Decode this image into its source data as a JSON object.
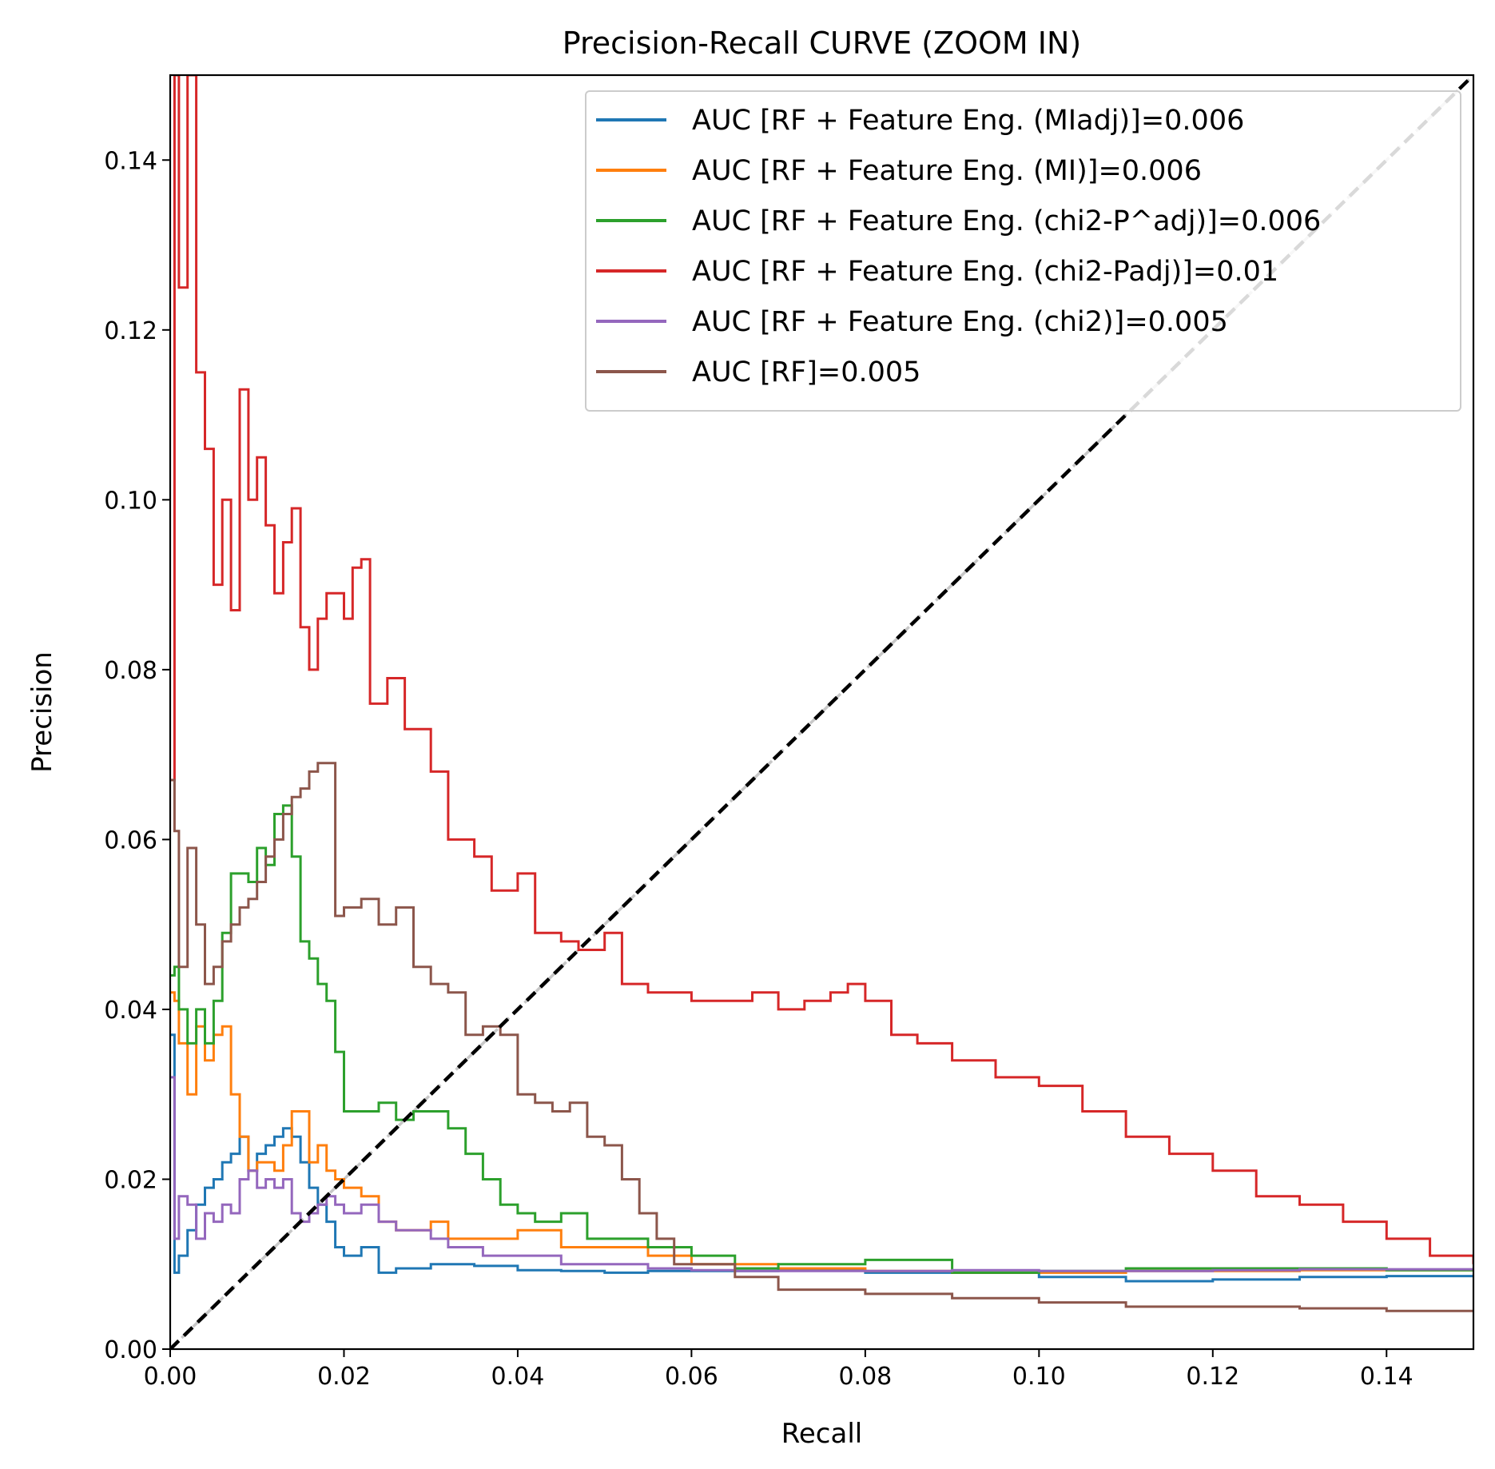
{
  "chart_data": {
    "type": "line",
    "title": "Precision-Recall CURVE (ZOOM IN)",
    "xlabel": "Recall",
    "ylabel": "Precision",
    "xlim": [
      0,
      0.15
    ],
    "ylim": [
      0,
      0.15
    ],
    "grid": false,
    "legend_position": "top-right",
    "xticks": [
      {
        "value": 0.0,
        "label": "0.00"
      },
      {
        "value": 0.02,
        "label": "0.02"
      },
      {
        "value": 0.04,
        "label": "0.04"
      },
      {
        "value": 0.06,
        "label": "0.06"
      },
      {
        "value": 0.08,
        "label": "0.08"
      },
      {
        "value": 0.1,
        "label": "0.10"
      },
      {
        "value": 0.12,
        "label": "0.12"
      },
      {
        "value": 0.14,
        "label": "0.14"
      }
    ],
    "yticks": [
      {
        "value": 0.0,
        "label": "0.00"
      },
      {
        "value": 0.02,
        "label": "0.02"
      },
      {
        "value": 0.04,
        "label": "0.04"
      },
      {
        "value": 0.06,
        "label": "0.06"
      },
      {
        "value": 0.08,
        "label": "0.08"
      },
      {
        "value": 0.1,
        "label": "0.10"
      },
      {
        "value": 0.12,
        "label": "0.12"
      },
      {
        "value": 0.14,
        "label": "0.14"
      }
    ],
    "reference_lines": [
      {
        "name": "diagonal-black",
        "color": "#000000",
        "dash": true,
        "x": [
          0,
          0.15
        ],
        "y": [
          0,
          0.15
        ]
      },
      {
        "name": "diagonal-grey",
        "color": "#c8c8c8",
        "dash": true,
        "x": [
          0,
          0.15
        ],
        "y": [
          0,
          0.15
        ]
      }
    ],
    "series": [
      {
        "name": "AUC [RF + Feature Eng. (MIadj)]=0.006",
        "color": "#1f77b4",
        "x": [
          0,
          0.0005,
          0.001,
          0.002,
          0.003,
          0.004,
          0.005,
          0.006,
          0.007,
          0.008,
          0.009,
          0.01,
          0.011,
          0.012,
          0.013,
          0.014,
          0.015,
          0.016,
          0.017,
          0.018,
          0.019,
          0.02,
          0.022,
          0.024,
          0.026,
          0.03,
          0.035,
          0.04,
          0.045,
          0.05,
          0.055,
          0.06,
          0.07,
          0.08,
          0.09,
          0.1,
          0.11,
          0.12,
          0.13,
          0.14,
          0.15
        ],
        "y": [
          0.037,
          0.009,
          0.011,
          0.014,
          0.017,
          0.019,
          0.02,
          0.022,
          0.023,
          0.025,
          0.021,
          0.023,
          0.024,
          0.025,
          0.026,
          0.025,
          0.022,
          0.019,
          0.017,
          0.015,
          0.012,
          0.011,
          0.012,
          0.009,
          0.0095,
          0.01,
          0.0098,
          0.0093,
          0.0092,
          0.009,
          0.0092,
          0.0092,
          0.0093,
          0.009,
          0.009,
          0.0085,
          0.008,
          0.0082,
          0.0085,
          0.0086,
          0.0087
        ]
      },
      {
        "name": "AUC [RF + Feature Eng. (MI)]=0.006",
        "color": "#ff7f0e",
        "x": [
          0,
          0.0005,
          0.001,
          0.002,
          0.003,
          0.004,
          0.005,
          0.006,
          0.007,
          0.008,
          0.009,
          0.01,
          0.011,
          0.012,
          0.013,
          0.014,
          0.015,
          0.016,
          0.017,
          0.018,
          0.019,
          0.02,
          0.022,
          0.024,
          0.026,
          0.028,
          0.03,
          0.032,
          0.034,
          0.036,
          0.04,
          0.045,
          0.05,
          0.055,
          0.06,
          0.07,
          0.08,
          0.09,
          0.1,
          0.11,
          0.12,
          0.13,
          0.14,
          0.15
        ],
        "y": [
          0.042,
          0.041,
          0.036,
          0.03,
          0.038,
          0.034,
          0.037,
          0.038,
          0.03,
          0.025,
          0.021,
          0.022,
          0.022,
          0.021,
          0.024,
          0.028,
          0.028,
          0.022,
          0.024,
          0.021,
          0.02,
          0.019,
          0.018,
          0.015,
          0.014,
          0.014,
          0.015,
          0.013,
          0.013,
          0.013,
          0.014,
          0.012,
          0.012,
          0.011,
          0.01,
          0.0095,
          0.0092,
          0.009,
          0.009,
          0.0092,
          0.0092,
          0.0093,
          0.0093,
          0.0094
        ]
      },
      {
        "name": "AUC [RF + Feature Eng. (chi2-P^adj)]=0.006",
        "color": "#2ca02c",
        "x": [
          0,
          0.0005,
          0.001,
          0.002,
          0.003,
          0.004,
          0.005,
          0.006,
          0.007,
          0.008,
          0.009,
          0.01,
          0.011,
          0.012,
          0.013,
          0.014,
          0.015,
          0.016,
          0.017,
          0.018,
          0.019,
          0.02,
          0.022,
          0.024,
          0.026,
          0.028,
          0.03,
          0.032,
          0.034,
          0.036,
          0.038,
          0.04,
          0.042,
          0.045,
          0.048,
          0.05,
          0.055,
          0.06,
          0.065,
          0.07,
          0.08,
          0.09,
          0.1,
          0.11,
          0.12,
          0.13,
          0.14,
          0.15
        ],
        "y": [
          0.044,
          0.045,
          0.04,
          0.036,
          0.04,
          0.036,
          0.041,
          0.049,
          0.056,
          0.056,
          0.055,
          0.059,
          0.057,
          0.063,
          0.064,
          0.058,
          0.048,
          0.046,
          0.043,
          0.041,
          0.035,
          0.028,
          0.028,
          0.029,
          0.027,
          0.028,
          0.028,
          0.026,
          0.023,
          0.02,
          0.017,
          0.016,
          0.015,
          0.016,
          0.013,
          0.013,
          0.012,
          0.011,
          0.0095,
          0.01,
          0.0105,
          0.009,
          0.0092,
          0.0095,
          0.0095,
          0.0095,
          0.0093,
          0.0092
        ]
      },
      {
        "name": "AUC [RF + Feature Eng. (chi2-Padj)]=0.01",
        "color": "#d62728",
        "x": [
          0,
          0.0005,
          0.001,
          0.002,
          0.003,
          0.004,
          0.005,
          0.006,
          0.007,
          0.008,
          0.009,
          0.01,
          0.011,
          0.012,
          0.013,
          0.014,
          0.015,
          0.016,
          0.017,
          0.018,
          0.019,
          0.02,
          0.021,
          0.022,
          0.023,
          0.025,
          0.027,
          0.03,
          0.032,
          0.035,
          0.037,
          0.04,
          0.042,
          0.045,
          0.047,
          0.05,
          0.052,
          0.055,
          0.06,
          0.063,
          0.067,
          0.07,
          0.073,
          0.076,
          0.078,
          0.08,
          0.083,
          0.086,
          0.09,
          0.095,
          0.1,
          0.105,
          0.11,
          0.115,
          0.12,
          0.125,
          0.13,
          0.135,
          0.14,
          0.145,
          0.15
        ],
        "y": [
          0.067,
          0.15,
          0.125,
          0.15,
          0.115,
          0.106,
          0.09,
          0.1,
          0.087,
          0.113,
          0.1,
          0.105,
          0.097,
          0.089,
          0.095,
          0.099,
          0.085,
          0.08,
          0.086,
          0.089,
          0.089,
          0.086,
          0.092,
          0.093,
          0.076,
          0.079,
          0.073,
          0.068,
          0.06,
          0.058,
          0.054,
          0.056,
          0.049,
          0.048,
          0.047,
          0.049,
          0.043,
          0.042,
          0.041,
          0.041,
          0.042,
          0.04,
          0.041,
          0.042,
          0.043,
          0.041,
          0.037,
          0.036,
          0.034,
          0.032,
          0.031,
          0.028,
          0.025,
          0.023,
          0.021,
          0.018,
          0.017,
          0.015,
          0.013,
          0.011,
          0.01
        ]
      },
      {
        "name": "AUC [RF + Feature Eng. (chi2)]=0.005",
        "color": "#9467bd",
        "x": [
          0,
          0.0005,
          0.001,
          0.002,
          0.003,
          0.004,
          0.005,
          0.006,
          0.007,
          0.008,
          0.009,
          0.01,
          0.011,
          0.012,
          0.013,
          0.014,
          0.015,
          0.016,
          0.017,
          0.018,
          0.019,
          0.02,
          0.022,
          0.024,
          0.026,
          0.028,
          0.03,
          0.032,
          0.034,
          0.036,
          0.04,
          0.045,
          0.05,
          0.055,
          0.06,
          0.065,
          0.07,
          0.08,
          0.09,
          0.1,
          0.11,
          0.12,
          0.13,
          0.14,
          0.15
        ],
        "y": [
          0.032,
          0.013,
          0.018,
          0.017,
          0.013,
          0.016,
          0.015,
          0.017,
          0.016,
          0.02,
          0.021,
          0.019,
          0.02,
          0.019,
          0.02,
          0.016,
          0.015,
          0.016,
          0.017,
          0.018,
          0.017,
          0.016,
          0.017,
          0.015,
          0.014,
          0.014,
          0.013,
          0.012,
          0.012,
          0.011,
          0.011,
          0.01,
          0.01,
          0.0095,
          0.0093,
          0.0092,
          0.0092,
          0.0092,
          0.0093,
          0.0092,
          0.0092,
          0.0093,
          0.0094,
          0.0094,
          0.0093
        ]
      },
      {
        "name": "AUC [RF]=0.005",
        "color": "#8c564b",
        "x": [
          0,
          0.0005,
          0.001,
          0.002,
          0.003,
          0.004,
          0.005,
          0.006,
          0.007,
          0.008,
          0.009,
          0.01,
          0.011,
          0.012,
          0.013,
          0.014,
          0.015,
          0.016,
          0.017,
          0.018,
          0.019,
          0.02,
          0.022,
          0.024,
          0.026,
          0.028,
          0.03,
          0.032,
          0.034,
          0.036,
          0.038,
          0.04,
          0.042,
          0.044,
          0.046,
          0.048,
          0.05,
          0.052,
          0.054,
          0.056,
          0.058,
          0.06,
          0.065,
          0.07,
          0.08,
          0.09,
          0.1,
          0.11,
          0.12,
          0.13,
          0.14,
          0.15
        ],
        "y": [
          0.067,
          0.061,
          0.045,
          0.059,
          0.05,
          0.043,
          0.045,
          0.048,
          0.05,
          0.052,
          0.053,
          0.055,
          0.058,
          0.06,
          0.063,
          0.065,
          0.066,
          0.068,
          0.069,
          0.069,
          0.051,
          0.052,
          0.053,
          0.05,
          0.052,
          0.045,
          0.043,
          0.042,
          0.037,
          0.038,
          0.037,
          0.03,
          0.029,
          0.028,
          0.029,
          0.025,
          0.024,
          0.02,
          0.016,
          0.013,
          0.01,
          0.01,
          0.0085,
          0.007,
          0.0065,
          0.006,
          0.0055,
          0.005,
          0.005,
          0.0048,
          0.0045,
          0.0045
        ]
      }
    ]
  }
}
